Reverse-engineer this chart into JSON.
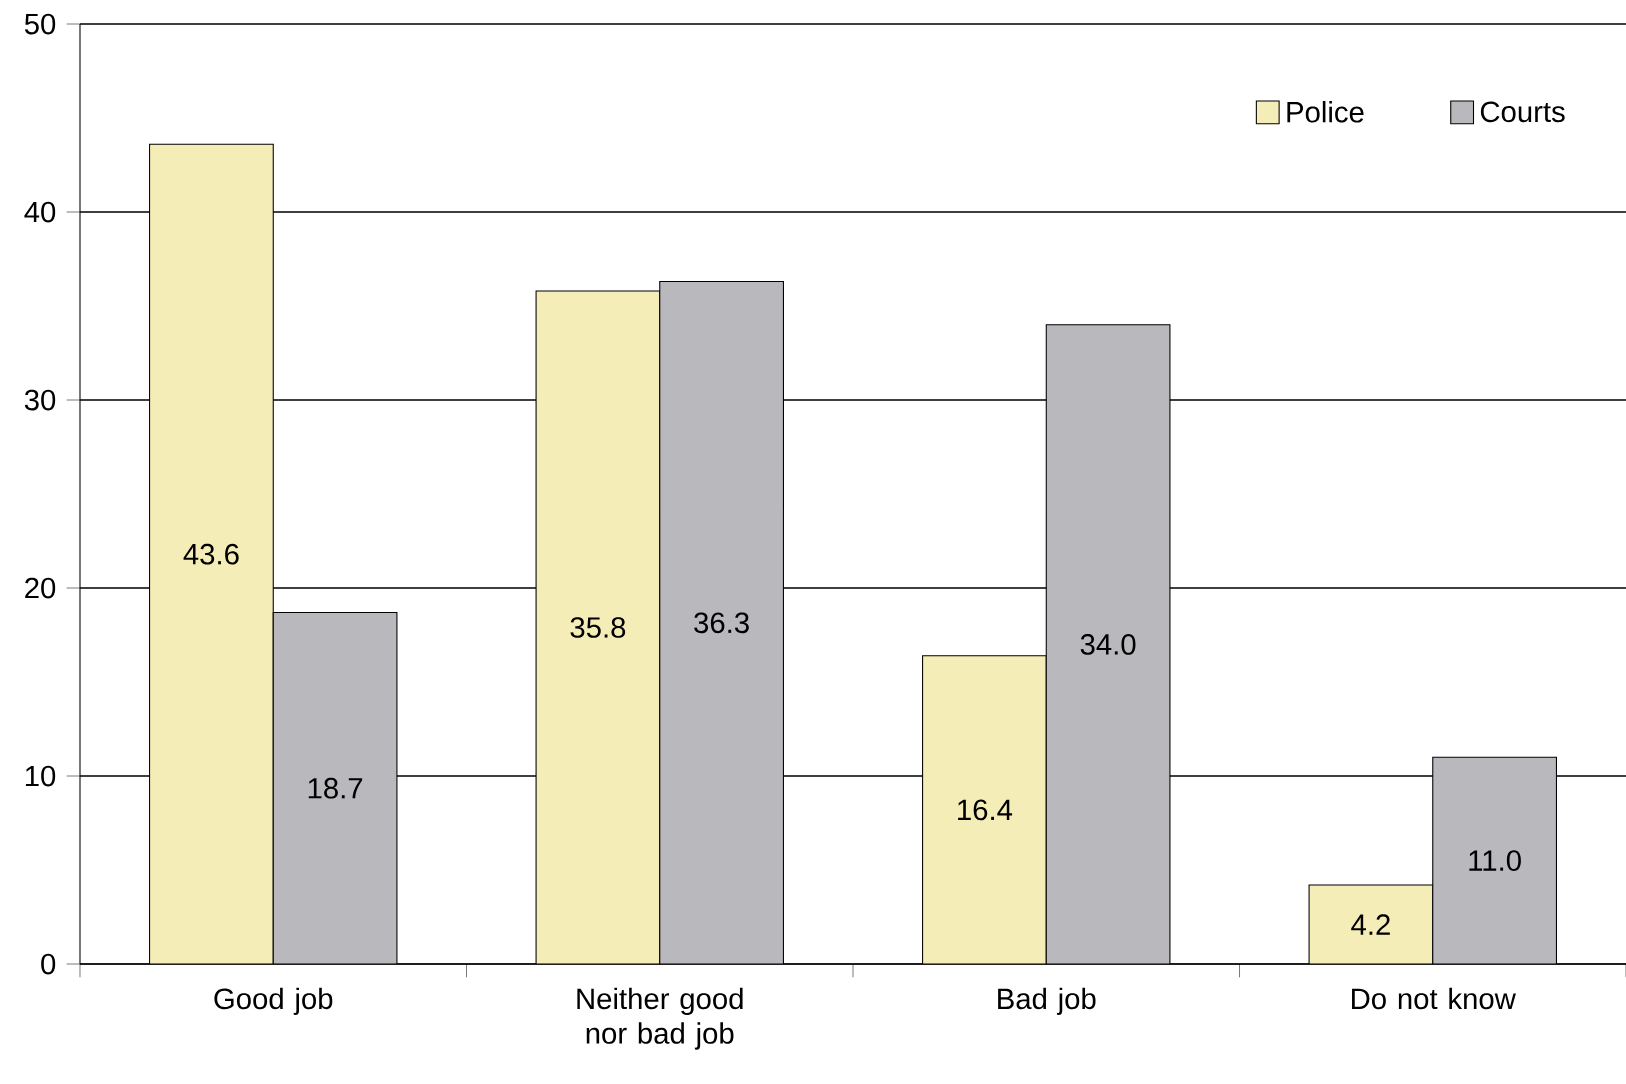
{
  "chart_data": {
    "type": "bar",
    "categories": [
      "Good job",
      "Neither good nor bad job",
      "Bad job",
      "Do not know"
    ],
    "series": [
      {
        "name": "Police",
        "color": "#f5edb8",
        "values": [
          43.6,
          35.8,
          16.4,
          4.2
        ],
        "value_labels": [
          "43.6",
          "35.8",
          "16.4",
          "4.2"
        ]
      },
      {
        "name": "Courts",
        "color": "#b9b9bd",
        "values": [
          18.7,
          36.3,
          34.0,
          11.0
        ],
        "value_labels": [
          "18.7",
          "36.3",
          "34.0",
          "11.0"
        ]
      }
    ],
    "ylim": [
      0,
      50
    ],
    "yticks": [
      0,
      10,
      20,
      30,
      40,
      50
    ],
    "grid": "y",
    "legend": "top right"
  }
}
